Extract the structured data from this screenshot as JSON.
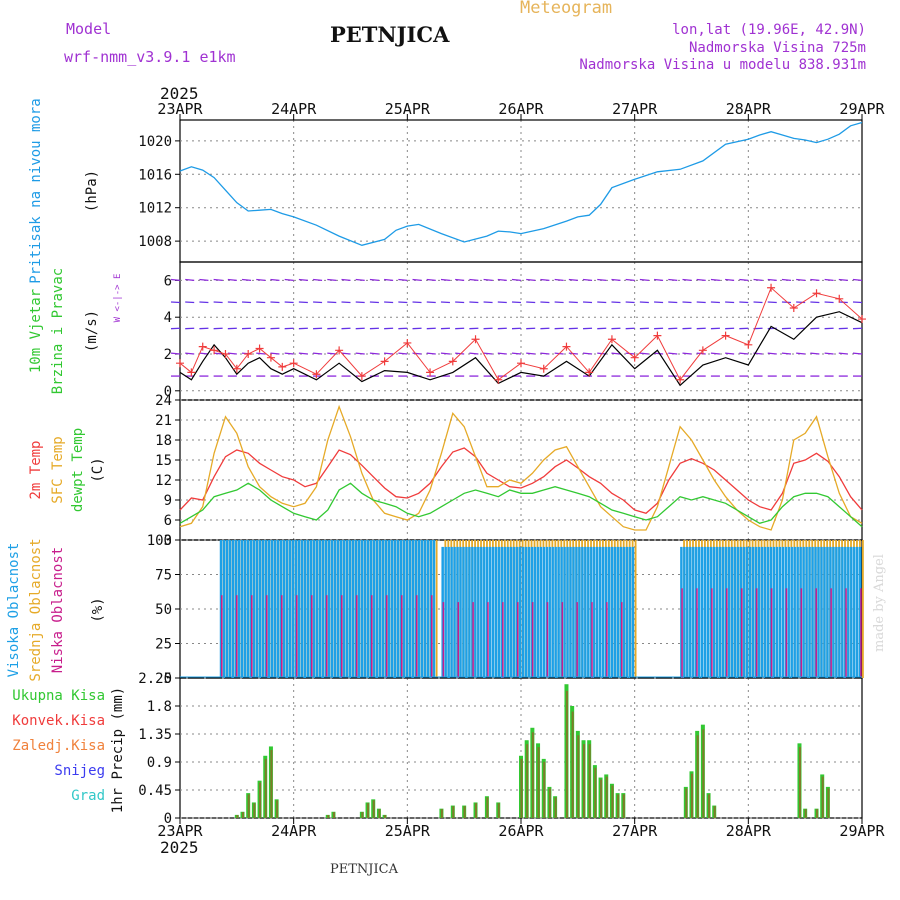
{
  "header": {
    "model_label": "Model",
    "model_name": "wrf-nmm_v3.9.1 e1km",
    "station": "PETNJICA",
    "product": "Meteogram",
    "coords": "lon,lat (19.96E, 42.9N)",
    "elevation": "Nadmorska Visina 725m",
    "model_elevation": "Nadmorska Visina u modelu 838.931m",
    "year": "2025",
    "footer_station": "PETNJICA",
    "credit": "made by Angel"
  },
  "colors": {
    "pressure": "#1e9be6",
    "temp2m": "#f03c3c",
    "sfc": "#e6aa28",
    "dewpt": "#32c832",
    "cloud_high": "#1ea0e6",
    "cloud_mid": "#e6aa28",
    "cloud_low": "#c81e8c",
    "precip_total": "#32c832",
    "precip_conv": "#f03c3c",
    "precip_frz": "#f0823c",
    "snow": "#3c3cf0",
    "hail": "#32c8c8",
    "wind_speed": "#000000",
    "wind_gust": "#f03c3c",
    "grid": "#888888",
    "purple": "#a032d2"
  },
  "chart_data": [
    {
      "type": "line",
      "panel": "pressure",
      "ylabel": [
        "Pritisak na nivou mora",
        "(hPa)"
      ],
      "x_ticks": [
        "23APR",
        "24APR",
        "25APR",
        "26APR",
        "27APR",
        "28APR",
        "29APR"
      ],
      "ylim": [
        1005.5,
        1022.5
      ],
      "yticks": [
        1008,
        1012,
        1016,
        1020
      ],
      "series": [
        {
          "name": "Pritisak na nivou mora",
          "x": [
            0,
            0.1,
            0.2,
            0.3,
            0.4,
            0.5,
            0.6,
            0.7,
            0.8,
            0.9,
            1.0,
            1.2,
            1.4,
            1.6,
            1.8,
            1.9,
            2.0,
            2.1,
            2.3,
            2.5,
            2.7,
            2.8,
            2.9,
            3.0,
            3.2,
            3.4,
            3.5,
            3.6,
            3.7,
            3.8,
            4.0,
            4.2,
            4.4,
            4.6,
            4.8,
            5.0,
            5.1,
            5.2,
            5.3,
            5.4,
            5.5,
            5.6,
            5.7,
            5.8,
            5.9,
            6.0
          ],
          "y": [
            1016.4,
            1016.9,
            1016.5,
            1015.6,
            1014.1,
            1012.6,
            1011.6,
            1011.7,
            1011.8,
            1011.3,
            1010.9,
            1009.9,
            1008.6,
            1007.5,
            1008.2,
            1009.3,
            1009.8,
            1010.0,
            1008.9,
            1007.9,
            1008.6,
            1009.2,
            1009.1,
            1008.9,
            1009.5,
            1010.4,
            1010.9,
            1011.1,
            1012.4,
            1014.4,
            1015.4,
            1016.3,
            1016.6,
            1017.6,
            1019.6,
            1020.2,
            1020.7,
            1021.1,
            1020.7,
            1020.3,
            1020.1,
            1019.8,
            1020.2,
            1020.8,
            1021.8,
            1022.2
          ]
        }
      ]
    },
    {
      "type": "vector",
      "panel": "wind",
      "ylabel": [
        "10m Vjetar",
        "Brzina i Pravac",
        "(m/s)"
      ],
      "compass": "W <-|-> E",
      "ylim": [
        -0.5,
        7
      ],
      "yticks": [
        0,
        2,
        4,
        6
      ],
      "series": [
        {
          "name": "speed",
          "x": [
            0,
            0.1,
            0.2,
            0.3,
            0.4,
            0.5,
            0.6,
            0.7,
            0.8,
            0.9,
            1.0,
            1.2,
            1.4,
            1.6,
            1.8,
            2.0,
            2.2,
            2.4,
            2.6,
            2.8,
            3.0,
            3.2,
            3.4,
            3.6,
            3.8,
            4.0,
            4.2,
            4.4,
            4.6,
            4.8,
            5.0,
            5.2,
            5.4,
            5.6,
            5.8,
            6.0
          ],
          "y": [
            1.0,
            0.6,
            1.6,
            2.5,
            1.8,
            0.9,
            1.5,
            1.8,
            1.2,
            0.9,
            1.2,
            0.6,
            1.5,
            0.5,
            1.1,
            1.0,
            0.6,
            1.0,
            1.8,
            0.4,
            1.0,
            0.8,
            1.6,
            0.8,
            2.5,
            1.2,
            2.2,
            0.3,
            1.4,
            1.8,
            1.4,
            3.5,
            2.8,
            4.0,
            4.3,
            3.7
          ]
        },
        {
          "name": "gust",
          "x": [
            0,
            0.1,
            0.2,
            0.3,
            0.4,
            0.5,
            0.6,
            0.7,
            0.8,
            0.9,
            1.0,
            1.2,
            1.4,
            1.6,
            1.8,
            2.0,
            2.2,
            2.4,
            2.6,
            2.8,
            3.0,
            3.2,
            3.4,
            3.6,
            3.8,
            4.0,
            4.2,
            4.4,
            4.6,
            4.8,
            5.0,
            5.2,
            5.4,
            5.6,
            5.8,
            6.0
          ],
          "y": [
            1.5,
            1.0,
            2.4,
            2.2,
            2.0,
            1.2,
            2.0,
            2.3,
            1.8,
            1.3,
            1.5,
            0.9,
            2.2,
            0.8,
            1.6,
            2.6,
            1.0,
            1.6,
            2.8,
            0.6,
            1.5,
            1.2,
            2.4,
            1.0,
            2.8,
            1.8,
            3.0,
            0.6,
            2.2,
            3.0,
            2.5,
            5.6,
            4.5,
            5.3,
            5.0,
            3.9
          ]
        }
      ],
      "vectors": [
        {
          "row": 6.0,
          "color": "#8c28dc",
          "dir": [
            -1,
            0.1
          ]
        },
        {
          "row": 4.8,
          "color": "#6432e6",
          "dir": [
            -1,
            0.05
          ]
        },
        {
          "row": 3.4,
          "color": "#6432e6",
          "dir": [
            -1,
            -0.05
          ]
        },
        {
          "row": 2.0,
          "color": "#8c28dc",
          "dir": [
            -1,
            0.1
          ]
        },
        {
          "row": 0.8,
          "color": "#8c28dc",
          "dir": [
            -1,
            0
          ]
        }
      ]
    },
    {
      "type": "line",
      "panel": "temperature",
      "ylabel": [
        "2m Temp",
        "SFC Temp",
        "dewpt Temp",
        "(C)"
      ],
      "ylim": [
        3,
        24
      ],
      "yticks": [
        3,
        6,
        9,
        12,
        15,
        18,
        21,
        24
      ],
      "series": [
        {
          "name": "2m Temp",
          "x": [
            0,
            0.1,
            0.2,
            0.3,
            0.4,
            0.5,
            0.6,
            0.7,
            0.8,
            0.9,
            1.0,
            1.1,
            1.2,
            1.3,
            1.4,
            1.5,
            1.6,
            1.7,
            1.8,
            1.9,
            2.0,
            2.1,
            2.2,
            2.3,
            2.4,
            2.5,
            2.6,
            2.7,
            2.8,
            2.9,
            3.0,
            3.1,
            3.2,
            3.3,
            3.4,
            3.5,
            3.6,
            3.7,
            3.8,
            3.9,
            4.0,
            4.1,
            4.2,
            4.3,
            4.4,
            4.5,
            4.6,
            4.7,
            4.8,
            4.9,
            5.0,
            5.1,
            5.2,
            5.3,
            5.4,
            5.5,
            5.6,
            5.7,
            5.8,
            5.9,
            6.0
          ],
          "y": [
            7.5,
            9.3,
            9.0,
            12.5,
            15.5,
            16.5,
            16.0,
            14.5,
            13.5,
            12.5,
            12.0,
            11.0,
            11.5,
            14.0,
            16.5,
            15.8,
            14.2,
            12.5,
            10.8,
            9.5,
            9.3,
            10.0,
            11.5,
            14.0,
            16.2,
            16.8,
            15.5,
            13.0,
            12.0,
            11.0,
            10.8,
            11.5,
            12.5,
            14.0,
            15.0,
            13.8,
            12.5,
            11.5,
            10.0,
            9.0,
            7.5,
            7.0,
            8.5,
            12.0,
            14.5,
            15.2,
            14.5,
            13.5,
            12.0,
            10.5,
            9.0,
            8.0,
            7.5,
            10.0,
            14.5,
            15.0,
            16.0,
            14.8,
            12.5,
            9.5,
            7.5
          ]
        },
        {
          "name": "SFC Temp",
          "x": [
            0,
            0.1,
            0.2,
            0.3,
            0.4,
            0.5,
            0.6,
            0.7,
            0.8,
            0.9,
            1.0,
            1.1,
            1.2,
            1.3,
            1.4,
            1.5,
            1.6,
            1.7,
            1.8,
            1.9,
            2.0,
            2.1,
            2.2,
            2.3,
            2.4,
            2.5,
            2.6,
            2.7,
            2.8,
            2.9,
            3.0,
            3.1,
            3.2,
            3.3,
            3.4,
            3.5,
            3.6,
            3.7,
            3.8,
            3.9,
            4.0,
            4.1,
            4.2,
            4.3,
            4.4,
            4.5,
            4.6,
            4.7,
            4.8,
            4.9,
            5.0,
            5.1,
            5.2,
            5.3,
            5.4,
            5.5,
            5.6,
            5.7,
            5.8,
            5.9,
            6.0
          ],
          "y": [
            5.0,
            5.5,
            8.0,
            16.0,
            21.5,
            19.0,
            14.0,
            11.0,
            9.5,
            8.5,
            8.0,
            8.5,
            11.0,
            18.0,
            23.0,
            18.5,
            13.0,
            9.0,
            7.0,
            6.5,
            6.0,
            7.0,
            10.5,
            16.0,
            22.0,
            20.0,
            15.5,
            11.0,
            11.0,
            12.0,
            11.5,
            13.0,
            15.0,
            16.5,
            17.0,
            14.0,
            11.0,
            8.0,
            6.5,
            5.0,
            4.5,
            4.5,
            8.0,
            14.0,
            20.0,
            18.0,
            15.0,
            12.0,
            9.5,
            7.5,
            6.0,
            5.0,
            4.5,
            9.0,
            18.0,
            19.0,
            21.5,
            15.5,
            10.0,
            6.5,
            5.5
          ]
        },
        {
          "name": "dewpt Temp",
          "x": [
            0,
            0.1,
            0.2,
            0.3,
            0.4,
            0.5,
            0.6,
            0.7,
            0.8,
            0.9,
            1.0,
            1.1,
            1.2,
            1.3,
            1.4,
            1.5,
            1.6,
            1.7,
            1.8,
            1.9,
            2.0,
            2.1,
            2.2,
            2.3,
            2.4,
            2.5,
            2.6,
            2.7,
            2.8,
            2.9,
            3.0,
            3.1,
            3.2,
            3.3,
            3.4,
            3.5,
            3.6,
            3.7,
            3.8,
            3.9,
            4.0,
            4.1,
            4.2,
            4.3,
            4.4,
            4.5,
            4.6,
            4.7,
            4.8,
            4.9,
            5.0,
            5.1,
            5.2,
            5.3,
            5.4,
            5.5,
            5.6,
            5.7,
            5.8,
            5.9,
            6.0
          ],
          "y": [
            5.5,
            6.5,
            7.5,
            9.5,
            10.0,
            10.5,
            11.5,
            10.5,
            9.0,
            8.0,
            7.0,
            6.5,
            6.0,
            7.5,
            10.5,
            11.5,
            10.0,
            9.0,
            8.5,
            8.0,
            7.0,
            6.5,
            7.0,
            8.0,
            9.0,
            10.0,
            10.5,
            10.0,
            9.5,
            10.5,
            10.0,
            10.0,
            10.5,
            11.0,
            10.5,
            10.0,
            9.5,
            8.5,
            7.5,
            7.0,
            6.5,
            6.0,
            6.5,
            8.0,
            9.5,
            9.0,
            9.5,
            9.0,
            8.5,
            7.5,
            6.5,
            5.5,
            6.0,
            8.0,
            9.5,
            10.0,
            10.0,
            9.5,
            8.0,
            6.5,
            5.0
          ]
        }
      ]
    },
    {
      "type": "bar",
      "panel": "clouds",
      "ylabel": [
        "Visoka Oblacnost",
        "Srednja Oblacnost",
        "Niska Oblacnost",
        "(%)"
      ],
      "ylim": [
        0,
        100
      ],
      "yticks": [
        0,
        25,
        50,
        75,
        100
      ],
      "periods": [
        {
          "from": 0.35,
          "to": 2.25,
          "high": 100,
          "mid": 100,
          "low": 60
        },
        {
          "from": 2.3,
          "to": 4.0,
          "high": 95,
          "mid": 100,
          "low": 55
        },
        {
          "from": 4.4,
          "to": 6.0,
          "high": 95,
          "mid": 100,
          "low": 65
        }
      ]
    },
    {
      "type": "bar",
      "panel": "precip",
      "ylabel": [
        "1hr Precip (mm)"
      ],
      "legend": [
        "Ukupna Kisa",
        "Konvek.Kisa",
        "Zaledj.Kisa",
        "Snijeg",
        "Grad"
      ],
      "ylim": [
        0,
        2.25
      ],
      "yticks": [
        0,
        0.45,
        0.9,
        1.35,
        1.8,
        2.25
      ],
      "x": [
        0.5,
        0.55,
        0.6,
        0.65,
        0.7,
        0.75,
        0.8,
        0.85,
        1.3,
        1.35,
        1.6,
        1.65,
        1.7,
        1.75,
        1.8,
        2.3,
        2.4,
        2.5,
        2.6,
        2.7,
        2.8,
        3.0,
        3.05,
        3.1,
        3.15,
        3.2,
        3.25,
        3.3,
        3.4,
        3.45,
        3.5,
        3.55,
        3.6,
        3.65,
        3.7,
        3.75,
        3.8,
        3.85,
        3.9,
        4.45,
        4.5,
        4.55,
        4.6,
        4.65,
        4.7,
        5.45,
        5.5,
        5.6,
        5.65,
        5.7
      ],
      "y": [
        0.05,
        0.1,
        0.4,
        0.25,
        0.6,
        1.0,
        1.15,
        0.3,
        0.05,
        0.1,
        0.1,
        0.25,
        0.3,
        0.15,
        0.05,
        0.15,
        0.2,
        0.2,
        0.25,
        0.35,
        0.25,
        1.0,
        1.25,
        1.45,
        1.2,
        0.95,
        0.5,
        0.35,
        2.15,
        1.8,
        1.4,
        1.25,
        1.25,
        0.85,
        0.65,
        0.7,
        0.55,
        0.4,
        0.4,
        0.5,
        0.75,
        1.4,
        1.5,
        0.4,
        0.2,
        1.2,
        0.15,
        0.15,
        0.7,
        0.5
      ]
    }
  ]
}
